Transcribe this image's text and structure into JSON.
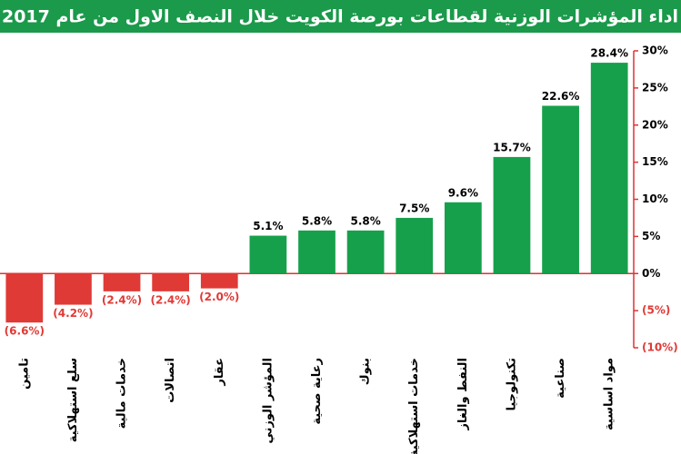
{
  "chart_data": {
    "type": "bar",
    "title": "اداء المؤشرات الوزنية لقطاعات بورصة الكويت خلال النصف الاول من عام 2017",
    "categories": [
      "تامين",
      "سلع استهلاكية",
      "خدمات مالية",
      "اتصالات",
      "عقار",
      "المؤشر الوزني",
      "رعاية صحية",
      "بنوك",
      "خدمات استهلاكية",
      "النفط والغاز",
      "تكنولوجيا",
      "صناعية",
      "مواد اساسية"
    ],
    "values": [
      -6.6,
      -4.2,
      -2.4,
      -2.4,
      -2.0,
      5.1,
      5.8,
      5.8,
      7.5,
      9.6,
      15.7,
      22.6,
      28.4
    ],
    "value_labels": [
      "(6.6%)",
      "(4.2%)",
      "(2.4%)",
      "(2.4%)",
      "(2.0%)",
      "5.1%",
      "5.8%",
      "5.8%",
      "7.5%",
      "9.6%",
      "15.7%",
      "22.6%",
      "28.4%"
    ],
    "colors": {
      "positive": "#17a04b",
      "negative": "#e03a36"
    },
    "ylim": [
      -10,
      30
    ],
    "yticks": [
      {
        "value": -10,
        "label": "(10%)"
      },
      {
        "value": -5,
        "label": "(5%)"
      },
      {
        "value": 0,
        "label": "0%"
      },
      {
        "value": 5,
        "label": "5%"
      },
      {
        "value": 10,
        "label": "10%"
      },
      {
        "value": 15,
        "label": "15%"
      },
      {
        "value": 20,
        "label": "20%"
      },
      {
        "value": 25,
        "label": "25%"
      },
      {
        "value": 30,
        "label": "30%"
      }
    ]
  }
}
